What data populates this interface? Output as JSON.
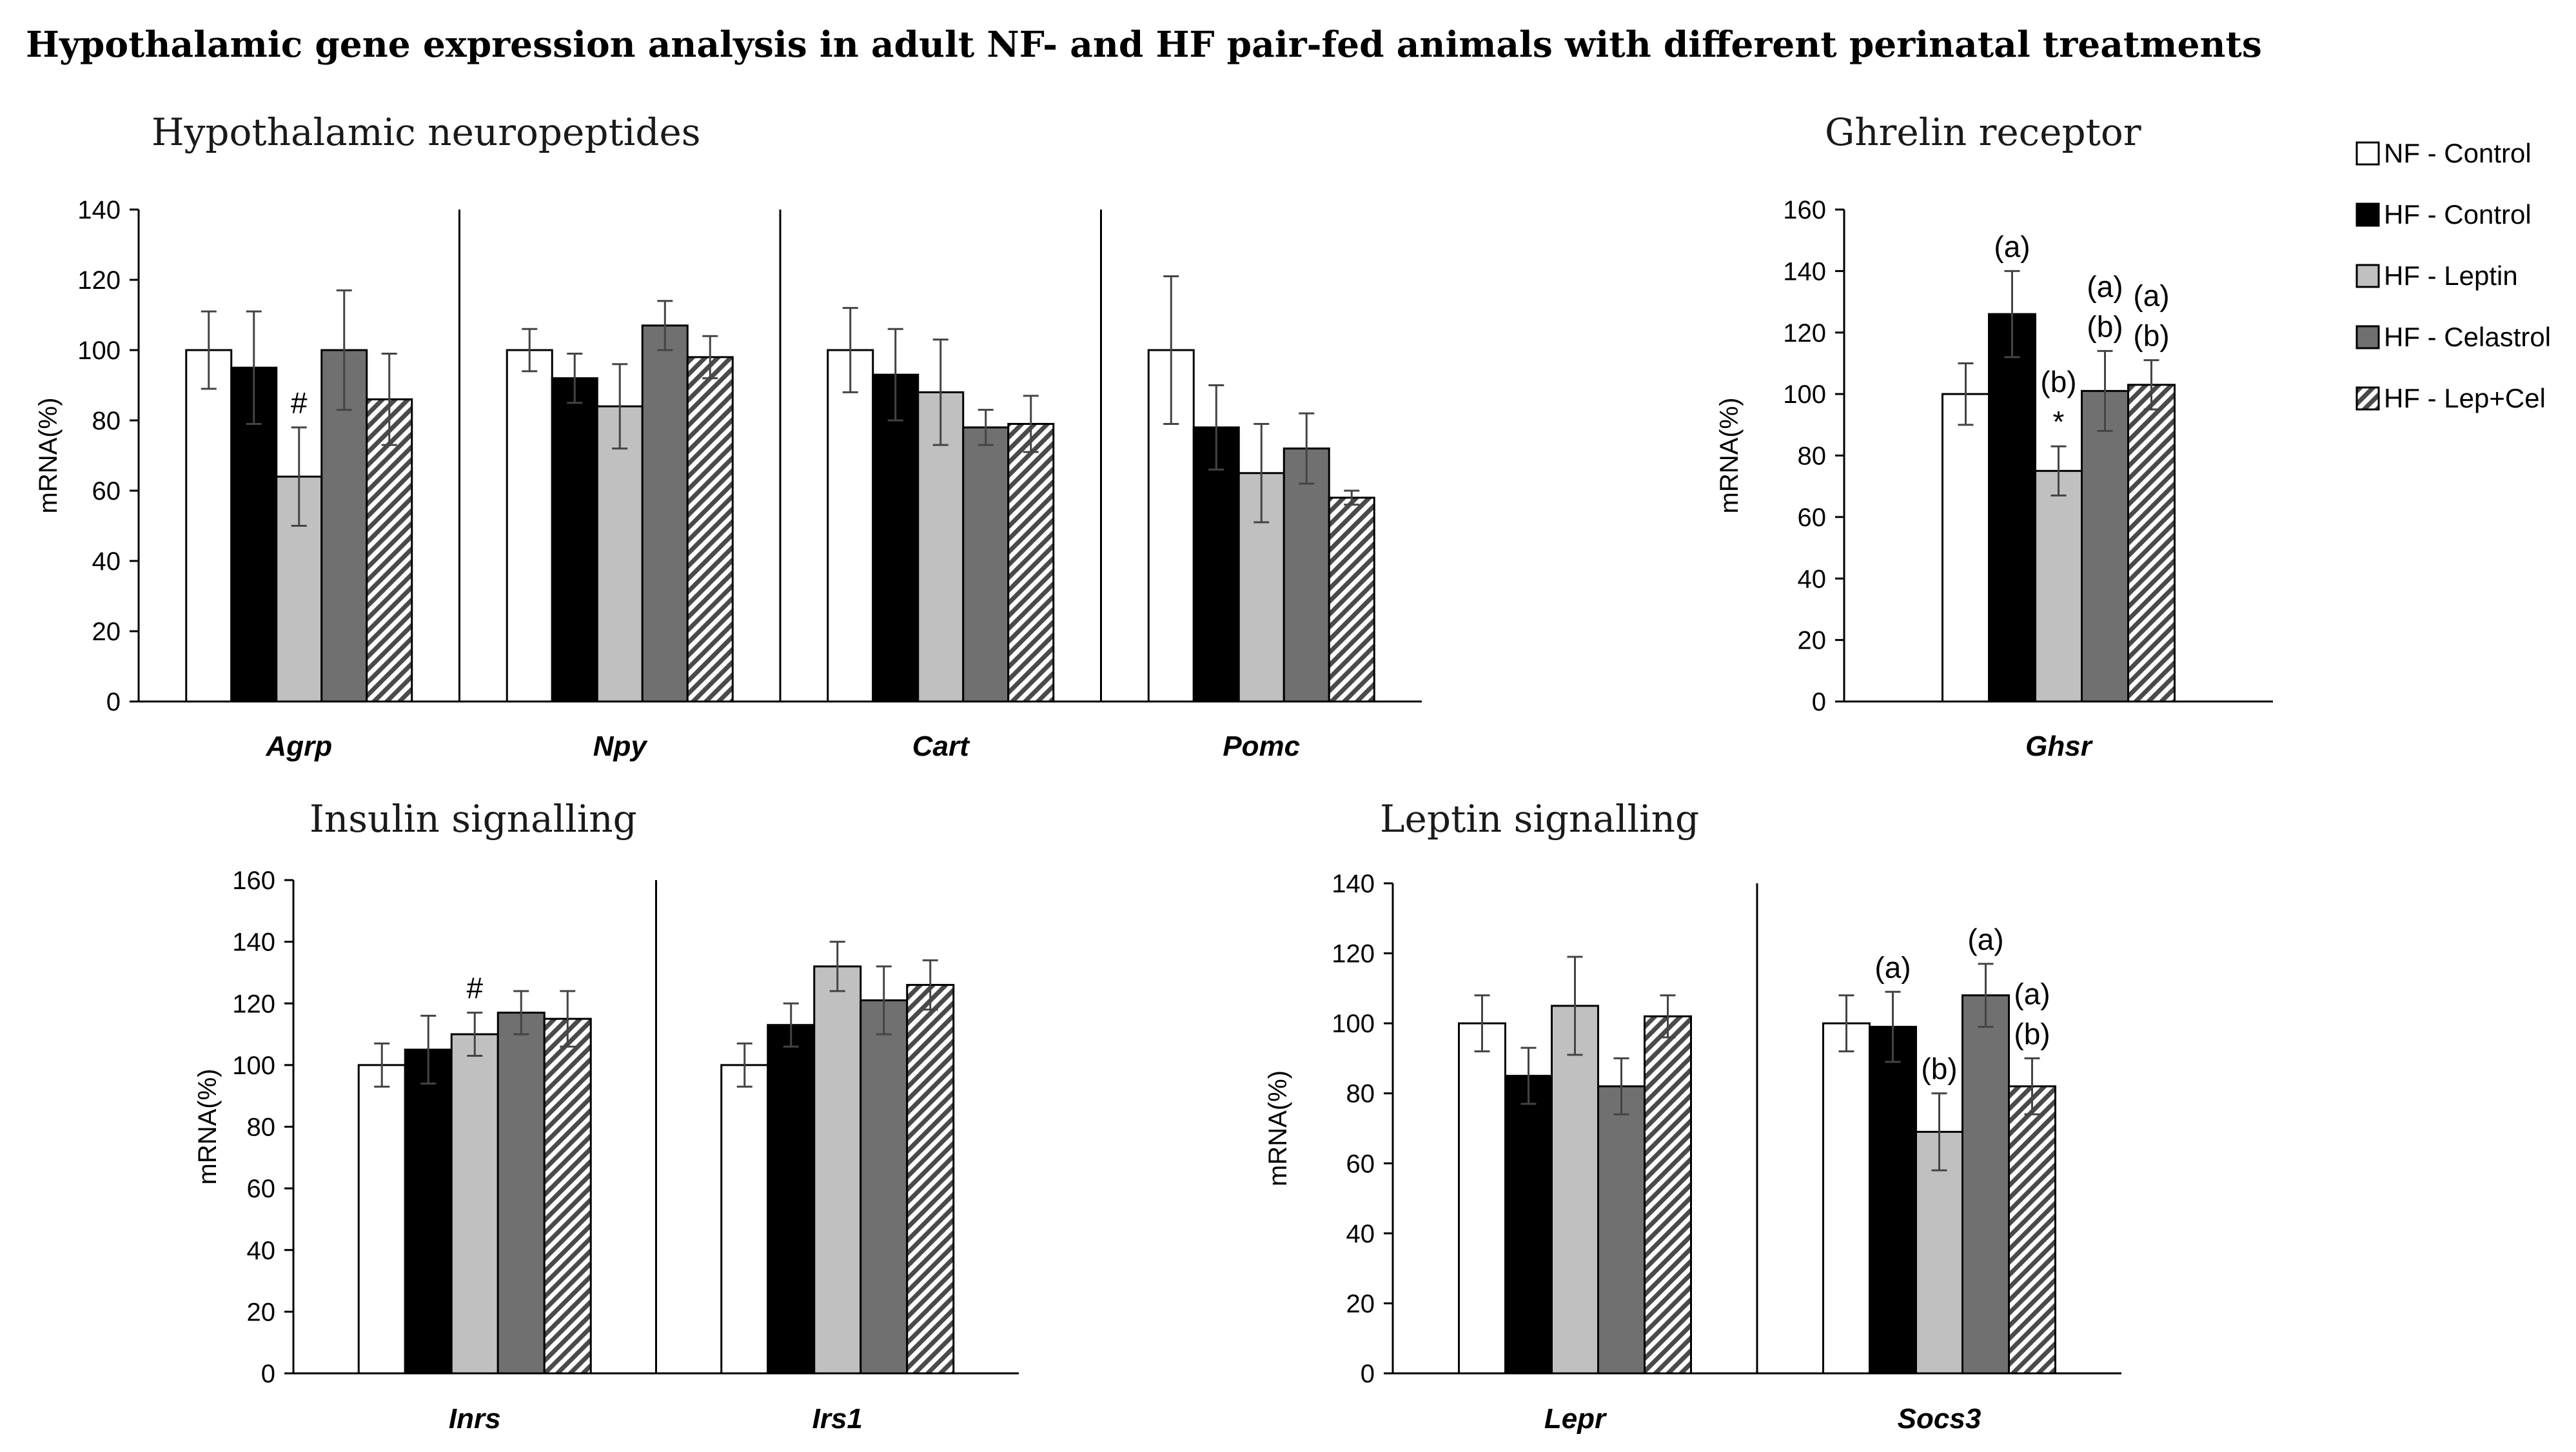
{
  "title": "Hypothalamic gene expression analysis in adult NF- and HF pair-fed animals with different perinatal treatments",
  "legend": [
    {
      "name": "NF - Control",
      "fill": "#ffffff"
    },
    {
      "name": "HF - Control",
      "fill": "#000000"
    },
    {
      "name": "HF - Leptin",
      "fill": "#c0c0c0"
    },
    {
      "name": "HF - Celastrol",
      "fill": "#707070"
    },
    {
      "name": "HF - Lep+Cel",
      "fill": "hatch"
    }
  ],
  "chart_data": [
    {
      "type": "bar",
      "title": "Hypothalamic neuropeptides",
      "ylabel": "mRNA(%)",
      "ylim": [
        0,
        140
      ],
      "yticks": [
        0,
        20,
        40,
        60,
        80,
        100,
        120,
        140
      ],
      "categories": [
        "Agrp",
        "Npy",
        "Cart",
        "Pomc"
      ],
      "series": [
        {
          "name": "NF - Control",
          "values": [
            100,
            100,
            100,
            100
          ],
          "errors": [
            11,
            6,
            12,
            21
          ]
        },
        {
          "name": "HF - Control",
          "values": [
            95,
            92,
            93,
            78
          ],
          "errors": [
            16,
            7,
            13,
            12
          ]
        },
        {
          "name": "HF - Leptin",
          "values": [
            64,
            84,
            88,
            65
          ],
          "errors": [
            14,
            12,
            15,
            14
          ]
        },
        {
          "name": "HF - Celastrol",
          "values": [
            100,
            107,
            78,
            72
          ],
          "errors": [
            17,
            7,
            5,
            10
          ]
        },
        {
          "name": "HF - Lep+Cel",
          "values": [
            86,
            98,
            79,
            58
          ],
          "errors": [
            13,
            6,
            8,
            2
          ]
        }
      ],
      "annotations": [
        {
          "category": 0,
          "series": 2,
          "lines": [
            "#"
          ]
        }
      ]
    },
    {
      "type": "bar",
      "title": "Ghrelin receptor",
      "ylabel": "mRNA(%)",
      "ylim": [
        0,
        160
      ],
      "yticks": [
        0,
        20,
        40,
        60,
        80,
        100,
        120,
        140,
        160
      ],
      "categories": [
        "Ghsr"
      ],
      "series": [
        {
          "name": "NF - Control",
          "values": [
            100
          ],
          "errors": [
            10
          ]
        },
        {
          "name": "HF - Control",
          "values": [
            126
          ],
          "errors": [
            14
          ]
        },
        {
          "name": "HF - Leptin",
          "values": [
            75
          ],
          "errors": [
            8
          ]
        },
        {
          "name": "HF - Celastrol",
          "values": [
            101
          ],
          "errors": [
            13
          ]
        },
        {
          "name": "HF - Lep+Cel",
          "values": [
            103
          ],
          "errors": [
            8
          ]
        }
      ],
      "annotations": [
        {
          "category": 0,
          "series": 1,
          "lines": [
            "(a)"
          ]
        },
        {
          "category": 0,
          "series": 2,
          "lines": [
            "(b)",
            "*"
          ]
        },
        {
          "category": 0,
          "series": 3,
          "lines": [
            "(a)",
            "(b)"
          ]
        },
        {
          "category": 0,
          "series": 4,
          "lines": [
            "(a)",
            "(b)"
          ]
        }
      ]
    },
    {
      "type": "bar",
      "title": "Insulin signalling",
      "ylabel": "mRNA(%)",
      "ylim": [
        0,
        160
      ],
      "yticks": [
        0,
        20,
        40,
        60,
        80,
        100,
        120,
        140,
        160
      ],
      "categories": [
        "Inrs",
        "Irs1"
      ],
      "series": [
        {
          "name": "NF - Control",
          "values": [
            100,
            100
          ],
          "errors": [
            7,
            7
          ]
        },
        {
          "name": "HF - Control",
          "values": [
            105,
            113
          ],
          "errors": [
            11,
            7
          ]
        },
        {
          "name": "HF - Leptin",
          "values": [
            110,
            132
          ],
          "errors": [
            7,
            8
          ]
        },
        {
          "name": "HF - Celastrol",
          "values": [
            117,
            121
          ],
          "errors": [
            7,
            11
          ]
        },
        {
          "name": "HF - Lep+Cel",
          "values": [
            115,
            126
          ],
          "errors": [
            9,
            8
          ]
        }
      ],
      "annotations": [
        {
          "category": 0,
          "series": 2,
          "lines": [
            "#"
          ]
        }
      ]
    },
    {
      "type": "bar",
      "title": "Leptin signalling",
      "ylabel": "mRNA(%)",
      "ylim": [
        0,
        140
      ],
      "yticks": [
        0,
        20,
        40,
        60,
        80,
        100,
        120,
        140
      ],
      "categories": [
        "Lepr",
        "Socs3"
      ],
      "series": [
        {
          "name": "NF - Control",
          "values": [
            100,
            100
          ],
          "errors": [
            8,
            8
          ]
        },
        {
          "name": "HF - Control",
          "values": [
            85,
            99
          ],
          "errors": [
            8,
            10
          ]
        },
        {
          "name": "HF - Leptin",
          "values": [
            105,
            69
          ],
          "errors": [
            14,
            11
          ]
        },
        {
          "name": "HF - Celastrol",
          "values": [
            82,
            108
          ],
          "errors": [
            8,
            9
          ]
        },
        {
          "name": "HF - Lep+Cel",
          "values": [
            102,
            82
          ],
          "errors": [
            6,
            8
          ]
        }
      ],
      "annotations": [
        {
          "category": 1,
          "series": 1,
          "lines": [
            "(a)"
          ]
        },
        {
          "category": 1,
          "series": 2,
          "lines": [
            "(b)"
          ]
        },
        {
          "category": 1,
          "series": 3,
          "lines": [
            "(a)"
          ]
        },
        {
          "category": 1,
          "series": 4,
          "lines": [
            "(a)",
            "(b)"
          ]
        }
      ]
    }
  ]
}
